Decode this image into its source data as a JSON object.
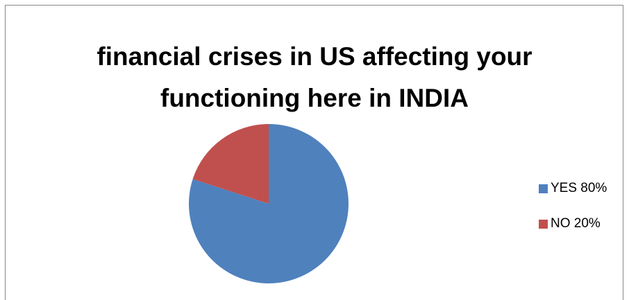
{
  "chart_data": {
    "type": "pie",
    "title_lines": [
      "financial crises in US affecting your",
      "functioning here in INDIA"
    ],
    "slices": [
      {
        "label": "YES 80%",
        "value": 80,
        "color": "#4F81BD"
      },
      {
        "label": "NO 20%",
        "value": 20,
        "color": "#C0504D"
      }
    ],
    "legend_position": "right"
  }
}
